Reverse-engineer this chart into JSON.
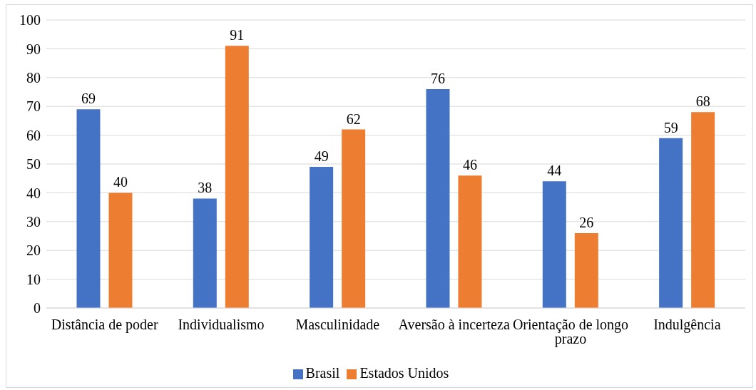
{
  "chart_data": {
    "type": "bar",
    "categories": [
      "Distância de poder",
      "Individualismo",
      "Masculinidade",
      "Aversão à incerteza",
      "Orientação de longo prazo",
      "Indulgência"
    ],
    "series": [
      {
        "name": "Brasil",
        "color": "#4472c4",
        "values": [
          69,
          38,
          49,
          76,
          44,
          59
        ]
      },
      {
        "name": "Estados Unidos",
        "color": "#ed7d31",
        "values": [
          40,
          91,
          62,
          46,
          26,
          68
        ]
      }
    ],
    "ylim": [
      0,
      100
    ],
    "yticks": [
      0,
      10,
      20,
      30,
      40,
      50,
      60,
      70,
      80,
      90,
      100
    ],
    "grid": "y",
    "legend": "bottom",
    "data_labels": true
  }
}
